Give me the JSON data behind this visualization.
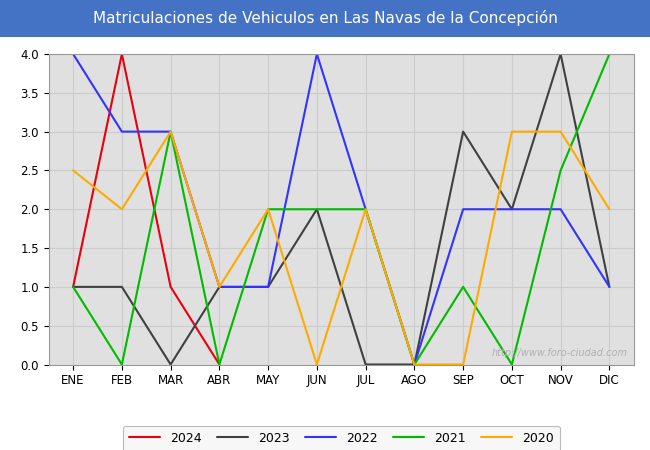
{
  "title": "Matriculaciones de Vehiculos en Las Navas de la Concepción",
  "title_bg_color": "#4472c4",
  "title_text_color": "#ffffff",
  "months": [
    "ENE",
    "FEB",
    "MAR",
    "ABR",
    "MAY",
    "JUN",
    "JUL",
    "AGO",
    "SEP",
    "OCT",
    "NOV",
    "DIC"
  ],
  "series": {
    "2024": {
      "color": "#e8000e",
      "values": [
        1.0,
        4.0,
        1.0,
        0.0,
        null,
        null,
        null,
        null,
        null,
        null,
        null,
        null
      ]
    },
    "2023": {
      "color": "#404040",
      "values": [
        1.0,
        1.0,
        0.0,
        1.0,
        1.0,
        2.0,
        0.0,
        0.0,
        3.0,
        2.0,
        4.0,
        1.0
      ]
    },
    "2022": {
      "color": "#3333ff",
      "values": [
        4.0,
        3.0,
        3.0,
        1.0,
        1.0,
        4.0,
        2.0,
        0.0,
        2.0,
        2.0,
        2.0,
        1.0
      ]
    },
    "2021": {
      "color": "#00bb00",
      "values": [
        1.0,
        0.0,
        3.0,
        0.0,
        2.0,
        2.0,
        2.0,
        0.0,
        1.0,
        0.0,
        2.5,
        4.0
      ]
    },
    "2020": {
      "color": "#ffaa00",
      "values": [
        2.5,
        2.0,
        3.0,
        1.0,
        2.0,
        0.0,
        2.0,
        0.0,
        0.0,
        3.0,
        3.0,
        2.0
      ]
    }
  },
  "ylim": [
    0.0,
    4.0
  ],
  "yticks": [
    0.0,
    0.5,
    1.0,
    1.5,
    2.0,
    2.5,
    3.0,
    3.5,
    4.0
  ],
  "grid_color": "#cccccc",
  "plot_bg_color": "#e0e0e0",
  "fig_bg_color": "#ffffff",
  "watermark": "http://www.foro-ciudad.com",
  "legend_order": [
    "2024",
    "2023",
    "2022",
    "2021",
    "2020"
  ],
  "title_fontsize": 11,
  "tick_fontsize": 8.5,
  "line_width": 1.5,
  "watermark_color": "#b0b0b0",
  "watermark_fontsize": 7
}
